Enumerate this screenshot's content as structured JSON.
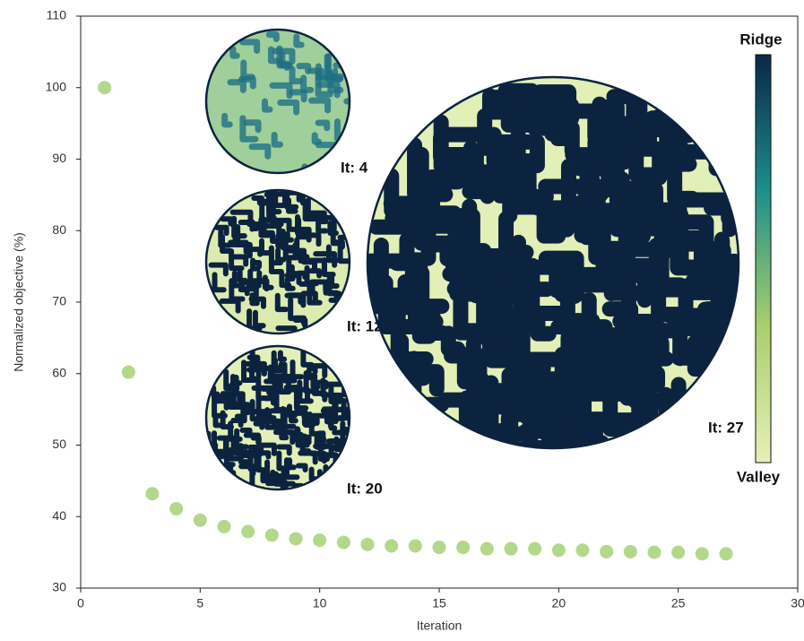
{
  "chart_data": {
    "type": "scatter",
    "x": [
      1,
      2,
      3,
      4,
      5,
      6,
      7,
      8,
      9,
      10,
      11,
      12,
      13,
      14,
      15,
      16,
      17,
      18,
      19,
      20,
      21,
      22,
      23,
      24,
      25,
      26,
      27
    ],
    "values": [
      100,
      60.2,
      43.2,
      41.1,
      39.5,
      38.6,
      37.9,
      37.4,
      36.9,
      36.7,
      36.4,
      36.1,
      35.9,
      35.9,
      35.7,
      35.7,
      35.5,
      35.5,
      35.5,
      35.3,
      35.3,
      35.1,
      35.1,
      35.0,
      35.0,
      34.8,
      34.8
    ],
    "color": "#b3d88a",
    "xlabel": "Iteration",
    "ylabel": "Normalized objective (%)",
    "xlim": [
      0,
      30
    ],
    "xticks": [
      0,
      5,
      10,
      15,
      20,
      25,
      30
    ],
    "ylim": [
      30,
      110
    ],
    "yticks": [
      30,
      40,
      50,
      60,
      70,
      80,
      90,
      100,
      110
    ],
    "insets": [
      {
        "label": "It: 4"
      },
      {
        "label": "It: 12"
      },
      {
        "label": "It: 20"
      },
      {
        "label": "It: 27"
      }
    ],
    "colorbar": {
      "top_label": "Ridge",
      "bottom_label": "Valley",
      "colors": [
        "#e6f0b9",
        "#a9cf6c",
        "#1b8f8a",
        "#0b2748"
      ]
    }
  }
}
